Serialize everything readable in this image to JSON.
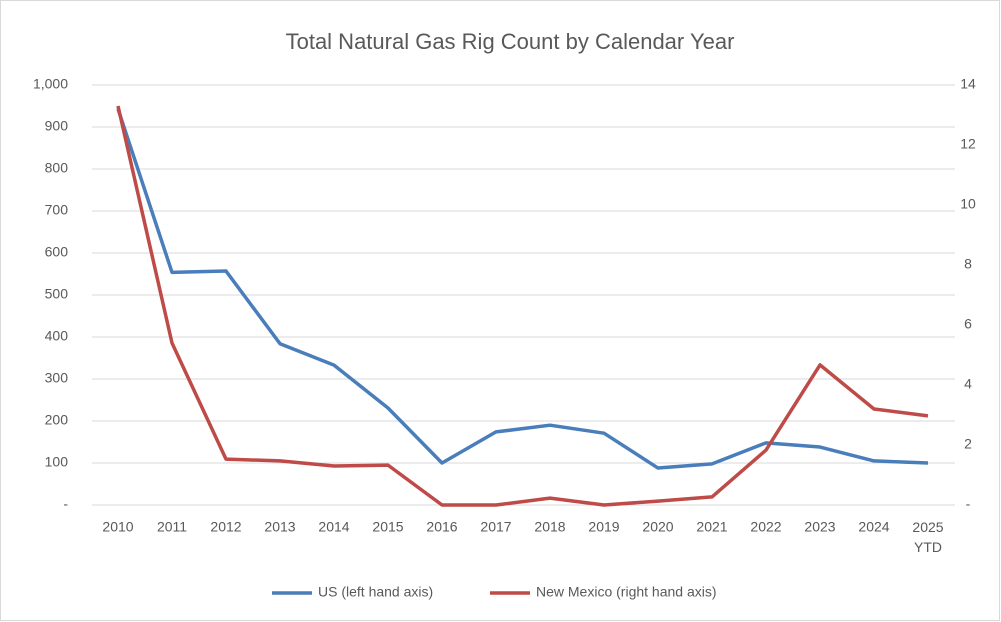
{
  "chart_data": {
    "type": "line",
    "title": "Total Natural Gas Rig Count by Calendar Year",
    "categories": [
      "2010",
      "2011",
      "2012",
      "2013",
      "2014",
      "2015",
      "2016",
      "2017",
      "2018",
      "2019",
      "2020",
      "2021",
      "2022",
      "2023",
      "2024",
      "2025\nYTD"
    ],
    "series": [
      {
        "name": "US (left hand axis)",
        "color": "#4a7ebb",
        "values": [
          943,
          554,
          557,
          384,
          333,
          231,
          100,
          174,
          190,
          171,
          88,
          98,
          148,
          138,
          105,
          100
        ]
      },
      {
        "name": "New Mexico (right hand axis)",
        "color": "#be4b48",
        "axis": "y2",
        "values": [
          13.3,
          5.4,
          1.53,
          1.47,
          1.3,
          1.33,
          0,
          0,
          0.23,
          0,
          0.13,
          0.27,
          1.83,
          4.67,
          3.2,
          2.97
        ]
      }
    ],
    "ylim": [
      0,
      1000
    ],
    "yticks": [
      {
        "value": 0,
        "label": "-"
      },
      100,
      200,
      300,
      400,
      500,
      600,
      700,
      800,
      900,
      {
        "value": 1000,
        "label": "1,000"
      }
    ],
    "y2lim": [
      0,
      14
    ],
    "y2ticks": [
      {
        "value": 0,
        "label": "-"
      },
      2,
      4,
      6,
      8,
      10,
      12,
      14
    ],
    "grid": true,
    "legend": "bottom"
  }
}
